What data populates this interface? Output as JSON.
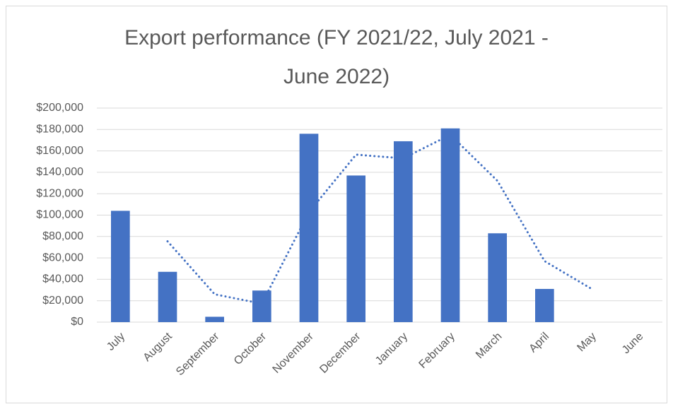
{
  "chart_data": {
    "type": "bar",
    "title": "Export performance (FY 2021/22, July 2021 - June 2022)",
    "categories": [
      "July",
      "August",
      "September",
      "October",
      "November",
      "December",
      "January",
      "February",
      "March",
      "April",
      "May",
      "June"
    ],
    "series": [
      {
        "type": "bar",
        "color": "#4472c4",
        "values": [
          104000,
          47000,
          5000,
          29500,
          176000,
          137000,
          169000,
          181000,
          83000,
          31000,
          null,
          null
        ]
      },
      {
        "type": "line",
        "color": "#4472c4",
        "dotted": true,
        "values": [
          null,
          75500,
          26000,
          17250,
          102750,
          156500,
          153000,
          175000,
          132000,
          57000,
          31000,
          null
        ]
      }
    ],
    "ylim": [
      0,
      200000
    ],
    "yticks": [
      {
        "value": 0,
        "label": "$0"
      },
      {
        "value": 20000,
        "label": "$20,000"
      },
      {
        "value": 40000,
        "label": "$40,000"
      },
      {
        "value": 60000,
        "label": "$60,000"
      },
      {
        "value": 80000,
        "label": "$80,000"
      },
      {
        "value": 100000,
        "label": "$100,000"
      },
      {
        "value": 120000,
        "label": "$120,000"
      },
      {
        "value": 140000,
        "label": "$140,000"
      },
      {
        "value": 160000,
        "label": "$160,000"
      },
      {
        "value": 180000,
        "label": "$180,000"
      },
      {
        "value": 200000,
        "label": "$200,000"
      }
    ],
    "grid": true
  }
}
